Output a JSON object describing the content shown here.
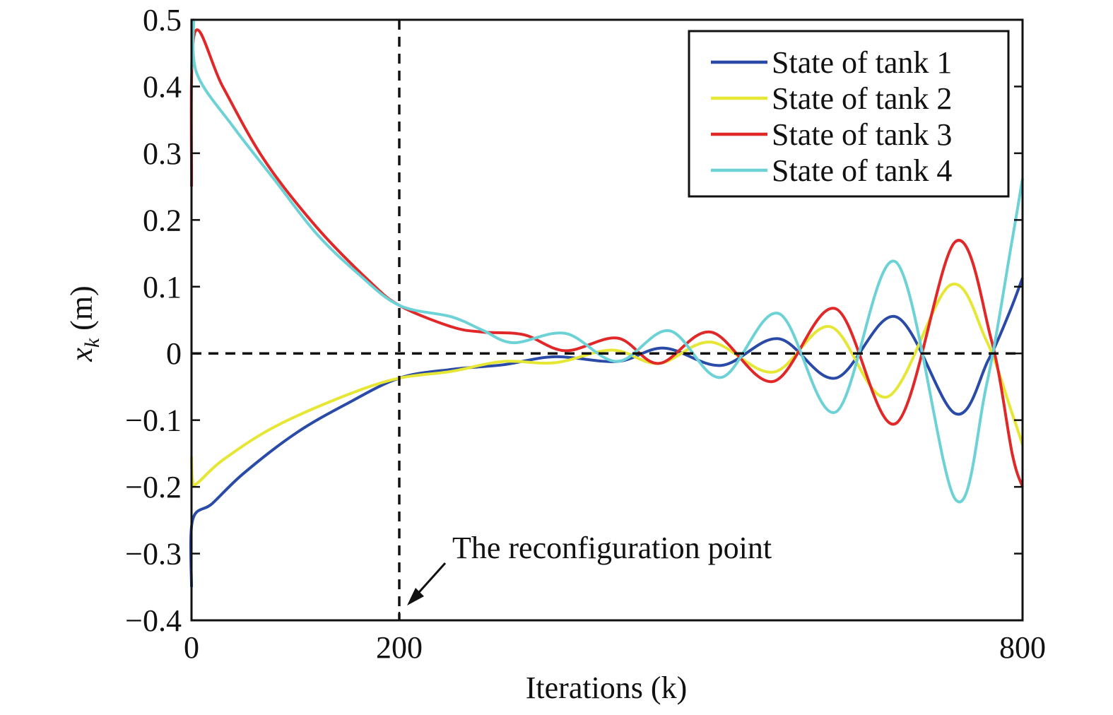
{
  "chart_data": {
    "type": "line",
    "xlabel": "Iterations (k)",
    "ylabel": {
      "main": "x",
      "sub": "k",
      "unit": " (m)"
    },
    "xlim": [
      0,
      800
    ],
    "ylim": [
      -0.4,
      0.5
    ],
    "x_ticks": [
      0,
      200,
      800
    ],
    "x_tick_labels": [
      "0",
      "200",
      "800"
    ],
    "y_ticks": [
      0.5,
      0.4,
      0.3,
      0.2,
      0.1,
      0,
      -0.1,
      -0.2,
      -0.3,
      -0.4
    ],
    "y_tick_labels": [
      "0.5",
      "0.4",
      "0.3",
      "0.2",
      "0.1",
      "0",
      "−0.1",
      "−0.2",
      "−0.3",
      "−0.4"
    ],
    "grid": false,
    "legend_position": "top-right",
    "reference_lines": [
      {
        "orientation": "vertical",
        "x": 200,
        "style": "dashed",
        "color": "#111111"
      },
      {
        "orientation": "horizontal",
        "y": 0,
        "style": "dashed",
        "color": "#111111"
      }
    ],
    "annotation": {
      "text": "The reconfiguration point",
      "arrow_to_x": 200,
      "arrow_to_y": -0.38
    },
    "series": [
      {
        "name": "State of tank 1",
        "color": "#2a4aa8",
        "points": [
          [
            0,
            -0.35
          ],
          [
            1,
            -0.25
          ],
          [
            20,
            -0.225
          ],
          [
            50,
            -0.18
          ],
          [
            100,
            -0.12
          ],
          [
            150,
            -0.075
          ],
          [
            200,
            -0.037
          ],
          [
            250,
            -0.024
          ],
          [
            300,
            -0.017
          ],
          [
            350,
            -0.005
          ],
          [
            410,
            -0.012
          ],
          [
            455,
            0.008
          ],
          [
            510,
            -0.018
          ],
          [
            565,
            0.022
          ],
          [
            620,
            -0.037
          ],
          [
            678,
            0.055
          ],
          [
            735,
            -0.09
          ],
          [
            767,
            -0.01
          ],
          [
            787,
            0.06
          ],
          [
            800,
            0.113
          ]
        ]
      },
      {
        "name": "State of tank 2",
        "color": "#e6e635",
        "points": [
          [
            0,
            -0.155
          ],
          [
            1,
            -0.19
          ],
          [
            5,
            -0.195
          ],
          [
            30,
            -0.16
          ],
          [
            80,
            -0.11
          ],
          [
            150,
            -0.062
          ],
          [
            200,
            -0.037
          ],
          [
            250,
            -0.027
          ],
          [
            300,
            -0.012
          ],
          [
            350,
            -0.014
          ],
          [
            405,
            0.005
          ],
          [
            450,
            -0.015
          ],
          [
            500,
            0.017
          ],
          [
            560,
            -0.028
          ],
          [
            615,
            0.04
          ],
          [
            670,
            -0.065
          ],
          [
            730,
            0.102
          ],
          [
            765,
            0.02
          ],
          [
            790,
            -0.09
          ],
          [
            800,
            -0.137
          ]
        ]
      },
      {
        "name": "State of tank 3",
        "color": "#e02828",
        "points": [
          [
            0,
            0.25
          ],
          [
            3,
            0.48
          ],
          [
            30,
            0.4
          ],
          [
            70,
            0.29
          ],
          [
            120,
            0.19
          ],
          [
            170,
            0.11
          ],
          [
            200,
            0.072
          ],
          [
            250,
            0.04
          ],
          [
            280,
            0.032
          ],
          [
            320,
            0.028
          ],
          [
            360,
            0.004
          ],
          [
            410,
            0.023
          ],
          [
            450,
            -0.015
          ],
          [
            500,
            0.032
          ],
          [
            560,
            -0.042
          ],
          [
            620,
            0.067
          ],
          [
            678,
            -0.105
          ],
          [
            735,
            0.167
          ],
          [
            770,
            0.02
          ],
          [
            790,
            -0.15
          ],
          [
            800,
            -0.2
          ]
        ]
      },
      {
        "name": "State of tank 4",
        "color": "#6cd2d6",
        "points": [
          [
            0,
            0.425
          ],
          [
            2,
            0.5
          ],
          [
            5,
            0.42
          ],
          [
            40,
            0.34
          ],
          [
            80,
            0.26
          ],
          [
            120,
            0.18
          ],
          [
            160,
            0.12
          ],
          [
            200,
            0.072
          ],
          [
            250,
            0.055
          ],
          [
            280,
            0.035
          ],
          [
            310,
            0.016
          ],
          [
            360,
            0.03
          ],
          [
            410,
            -0.012
          ],
          [
            460,
            0.034
          ],
          [
            510,
            -0.036
          ],
          [
            565,
            0.06
          ],
          [
            620,
            -0.088
          ],
          [
            678,
            0.137
          ],
          [
            735,
            -0.218
          ],
          [
            765,
            -0.05
          ],
          [
            790,
            0.17
          ],
          [
            800,
            0.262
          ]
        ]
      }
    ]
  }
}
